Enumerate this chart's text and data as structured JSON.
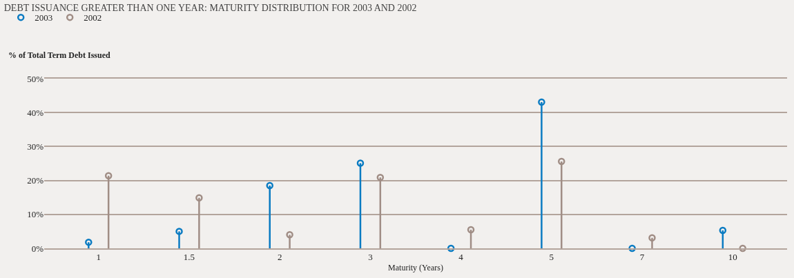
{
  "chart_data": {
    "type": "lollipop",
    "title": "DEBT ISSUANCE GREATER THAN ONE YEAR: MATURITY DISTRIBUTION FOR 2003 AND 2002",
    "ylabel": "% of Total Term Debt Issued",
    "xlabel": "Maturity (Years)",
    "categories": [
      "1",
      "1.5",
      "2",
      "3",
      "4",
      "5",
      "7",
      "10"
    ],
    "series": [
      {
        "name": "2003",
        "color": "#0a7bc2",
        "values": [
          1.8,
          5.0,
          18.5,
          25.1,
          0,
          43.1,
          0,
          5.3
        ]
      },
      {
        "name": "2002",
        "color": "#a08d85",
        "values": [
          21.4,
          14.9,
          4.0,
          20.9,
          5.5,
          25.6,
          3.1,
          0
        ]
      }
    ],
    "ylim": [
      0,
      50
    ],
    "yticks": [
      {
        "value": 0,
        "label": "0%"
      },
      {
        "value": 10,
        "label": "10%"
      },
      {
        "value": 20,
        "label": "20%"
      },
      {
        "value": 30,
        "label": "30%"
      },
      {
        "value": 40,
        "label": "40%"
      },
      {
        "value": 50,
        "label": "50%"
      }
    ],
    "grid": "y",
    "legend": "top left",
    "marker": "circle"
  }
}
